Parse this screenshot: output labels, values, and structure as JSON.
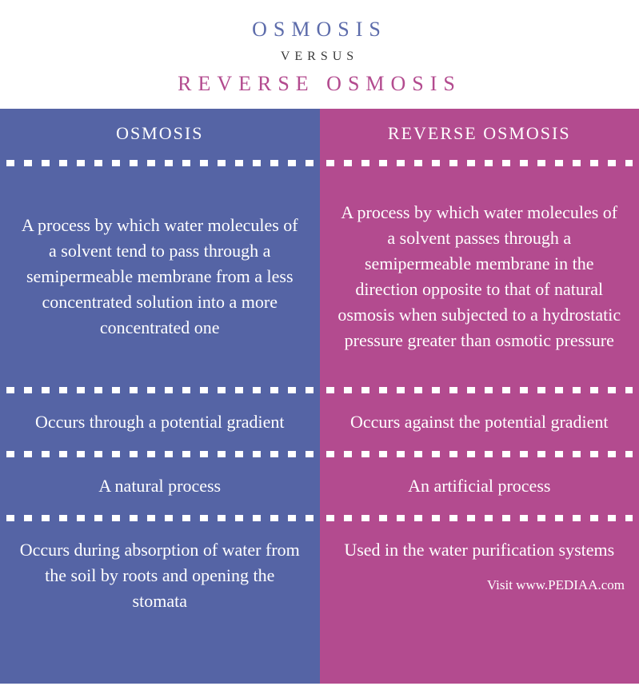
{
  "colors": {
    "osmosis_title": "#5d6cab",
    "reverse_title": "#b34b8f",
    "versus": "#3a3a3a",
    "left_bg": "#5564a5",
    "right_bg": "#b34b8f",
    "text": "#ffffff",
    "divider_square": "#ffffff"
  },
  "header": {
    "primary": "OSMOSIS",
    "versus": "VERSUS",
    "secondary": "REVERSE OSMOSIS"
  },
  "left": {
    "title": "OSMOSIS",
    "rows": [
      "A process by which water molecules of a solvent tend to pass through a semipermeable membrane from a less concentrated solution into a more concentrated one",
      "Occurs through a potential gradient",
      "A natural process",
      "Occurs during absorption of water from the soil by roots and opening the stomata"
    ]
  },
  "right": {
    "title": "REVERSE OSMOSIS",
    "rows": [
      "A process by which water molecules of a solvent passes through a semipermeable membrane in the direction opposite to that of natural osmosis when subjected to a hydrostatic pressure greater than osmotic pressure",
      "Occurs against the potential gradient",
      "An artificial process",
      "Used in the water purification systems"
    ]
  },
  "footer": {
    "credit": "Visit www.PEDIAA.com"
  }
}
